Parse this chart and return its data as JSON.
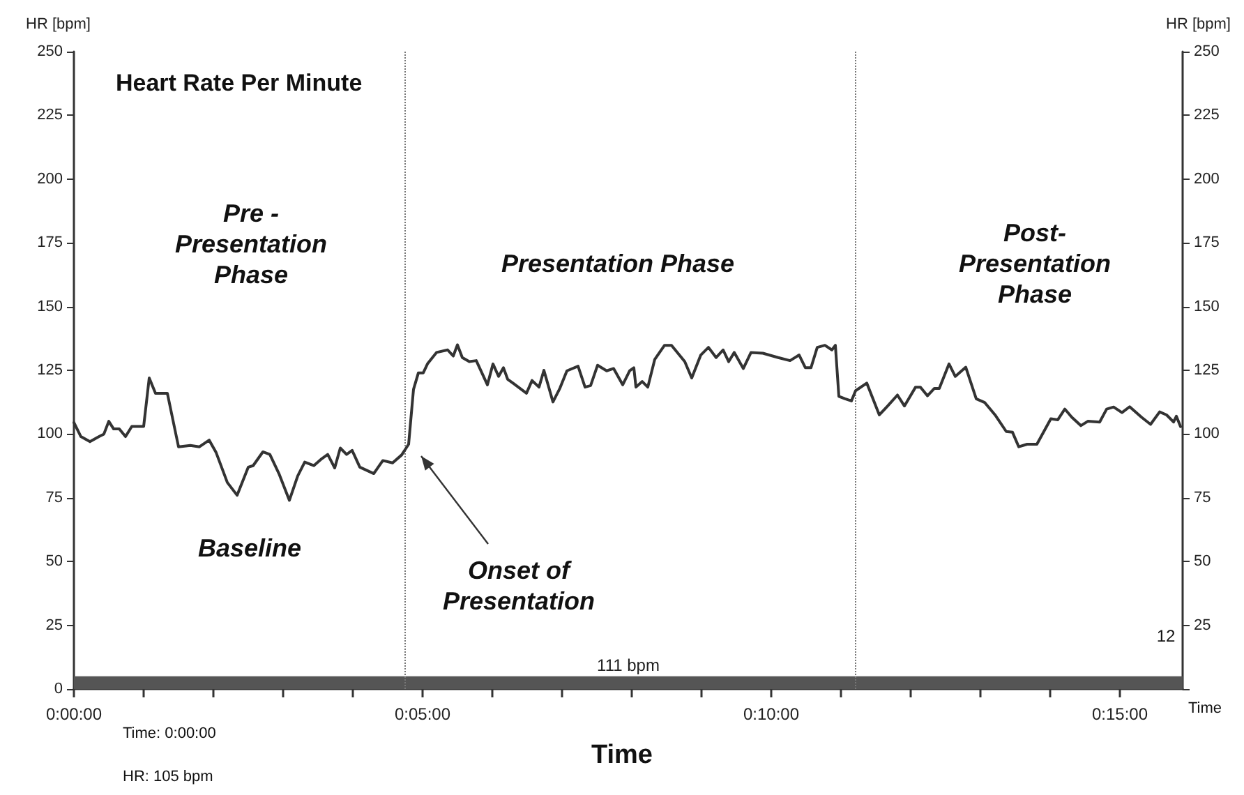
{
  "chart_data": {
    "type": "line",
    "title": "Heart Rate Per Minute",
    "xlabel": "Time",
    "ylabel": "HR [bpm]",
    "y2label": "HR [bpm]",
    "x": [
      0,
      0.1,
      0.23,
      0.36,
      0.43,
      0.5,
      0.57,
      0.65,
      0.74,
      0.83,
      1.0,
      1.08,
      1.17,
      1.34,
      1.5,
      1.67,
      1.8,
      1.94,
      2.04,
      2.2,
      2.34,
      2.5,
      2.57,
      2.71,
      2.81,
      2.94,
      3.09,
      3.21,
      3.31,
      3.44,
      3.54,
      3.64,
      3.74,
      3.82,
      3.91,
      3.99,
      4.1,
      4.3,
      4.43,
      4.57,
      4.7,
      4.8,
      4.87,
      4.94,
      5.01,
      5.07,
      5.2,
      5.36,
      5.44,
      5.5,
      5.57,
      5.67,
      5.77,
      5.93,
      6.01,
      6.09,
      6.16,
      6.22,
      6.31,
      6.49,
      6.57,
      6.67,
      6.74,
      6.87,
      6.97,
      7.07,
      7.23,
      7.33,
      7.41,
      7.51,
      7.64,
      7.74,
      7.87,
      7.97,
      8.03,
      8.06,
      8.15,
      8.23,
      8.33,
      8.47,
      8.57,
      8.76,
      8.86,
      8.99,
      9.1,
      9.21,
      9.31,
      9.39,
      9.47,
      9.6,
      9.71,
      9.88,
      10.1,
      10.27,
      10.4,
      10.49,
      10.57,
      10.66,
      10.77,
      10.87,
      10.92,
      10.97,
      11.06,
      11.15,
      11.21,
      11.37,
      11.55,
      11.67,
      11.81,
      11.91,
      12.07,
      12.14,
      12.24,
      12.34,
      12.41,
      12.55,
      12.64,
      12.79,
      12.94,
      13.06,
      13.21,
      13.37,
      13.46,
      13.55,
      13.67,
      13.81,
      13.91,
      14.01,
      14.11,
      14.21,
      14.31,
      14.44,
      14.54,
      14.71,
      14.81,
      14.91,
      15.03,
      15.14,
      15.31,
      15.44,
      15.57,
      15.67,
      15.77,
      15.81,
      15.87
    ],
    "values": [
      104.5,
      99,
      97,
      99,
      100,
      105,
      102,
      102,
      99,
      103,
      103,
      122,
      116,
      116,
      95,
      95.5,
      95,
      97.6,
      92.7,
      81,
      76,
      87,
      87.6,
      93,
      92,
      84.5,
      74,
      83.6,
      89,
      87.6,
      90,
      92,
      86.7,
      94.5,
      92,
      93.6,
      87,
      84.5,
      89.6,
      88.7,
      91.8,
      96,
      117.5,
      124,
      124,
      127.5,
      132,
      133,
      130.6,
      135,
      130,
      128.4,
      128.8,
      119.3,
      127.5,
      122.6,
      126,
      121.5,
      119.7,
      116,
      121,
      118.4,
      125,
      112.6,
      118,
      124.8,
      126.6,
      118.4,
      119,
      127,
      124.8,
      125.7,
      119.3,
      124.8,
      126,
      118.4,
      120.6,
      118.4,
      129.3,
      134.8,
      134.8,
      128.4,
      122,
      131,
      134,
      130,
      133,
      128.4,
      132,
      125.7,
      132,
      131.7,
      130,
      128.8,
      131,
      126,
      126,
      134,
      134.8,
      133,
      134.8,
      114.8,
      113.8,
      113,
      117,
      120,
      107.5,
      111,
      115.3,
      111,
      118.4,
      118.4,
      115,
      117.9,
      117.9,
      127.5,
      122.6,
      126.2,
      113.8,
      112.4,
      107.5,
      101,
      100.7,
      95,
      96,
      96,
      101,
      106,
      105.6,
      109.8,
      106.6,
      103.3,
      105,
      104.7,
      109.8,
      110.6,
      108.4,
      110.7,
      106.6,
      103.8,
      108.7,
      107.5,
      104.7,
      107,
      102.9
    ],
    "color": "#333333",
    "marker": "none",
    "line_style": "solid",
    "grid": false,
    "xlim": [
      0,
      15.9
    ],
    "xticks": [
      {
        "value": 0,
        "label": "0:00:00"
      },
      {
        "value": 1,
        "label": null
      },
      {
        "value": 2,
        "label": null
      },
      {
        "value": 3,
        "label": null
      },
      {
        "value": 4,
        "label": null
      },
      {
        "value": 5,
        "label": "0:05:00"
      },
      {
        "value": 6,
        "label": null
      },
      {
        "value": 7,
        "label": null
      },
      {
        "value": 8,
        "label": null
      },
      {
        "value": 9,
        "label": null
      },
      {
        "value": 10,
        "label": "0:10:00"
      },
      {
        "value": 11,
        "label": null
      },
      {
        "value": 12,
        "label": null
      },
      {
        "value": 13,
        "label": null
      },
      {
        "value": 14,
        "label": null
      },
      {
        "value": 15,
        "label": "0:15:00"
      }
    ],
    "ylim": [
      0,
      250
    ],
    "yticks": [
      0,
      25,
      50,
      75,
      100,
      125,
      150,
      175,
      200,
      225,
      250
    ],
    "y2lim": [
      0,
      250
    ],
    "y2ticks": [
      {
        "value": 0,
        "label": null
      },
      25,
      50,
      75,
      100,
      125,
      150,
      175,
      200,
      225,
      250
    ],
    "ref_lines": [
      {
        "axis": "x",
        "value": 4.75,
        "label": null,
        "color": "#777777",
        "line_style": "dotted"
      },
      {
        "axis": "x",
        "value": 11.2,
        "label": null,
        "color": "#777777",
        "line_style": "dotted"
      }
    ],
    "bands": [
      {
        "axis": "y",
        "from": 0,
        "to": 5,
        "label": "111 bpm",
        "color": "#555555"
      }
    ],
    "annotations": [
      "Pre -\nPresentation\nPhase",
      "Presentation Phase",
      "Post-\nPresentation\nPhase",
      "Baseline",
      "Onset of\nPresentation",
      "12",
      "Time: 0:00:00",
      "HR: 105 bpm",
      "Time"
    ]
  }
}
